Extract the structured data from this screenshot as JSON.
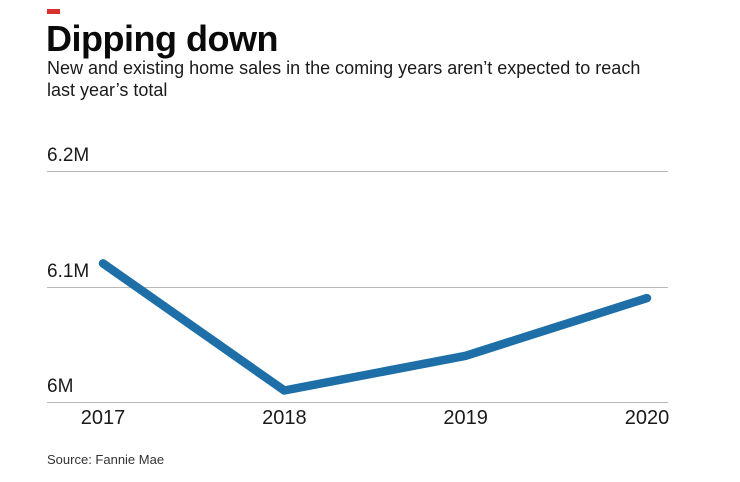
{
  "header": {
    "accent_color": "#d7312e",
    "title": "Dipping down",
    "subtitle": "New and existing home sales in the coming years aren’t expected to reach last year’s total"
  },
  "chart_data": {
    "type": "line",
    "title": "Dipping down",
    "subtitle": "New and existing home sales in the coming years aren’t expected to reach last year’s total",
    "categories": [
      "2017",
      "2018",
      "2019",
      "2020"
    ],
    "series": [
      {
        "values": [
          6.12,
          6.01,
          6.04,
          6.09
        ]
      }
    ],
    "unit": "millions of home sales",
    "y_ticks": [
      {
        "label": "6M",
        "value": 6.0
      },
      {
        "label": "6.1M",
        "value": 6.1
      },
      {
        "label": "6.2M",
        "value": 6.2
      }
    ],
    "ylim": [
      6.0,
      6.25
    ],
    "grid": "horizontal gridlines only, no vertical axis line",
    "legend": "none",
    "line_color": "#1e6fa8",
    "gridline_color": "#b7b7b7"
  },
  "footer": {
    "source": "Source: Fannie Mae"
  }
}
